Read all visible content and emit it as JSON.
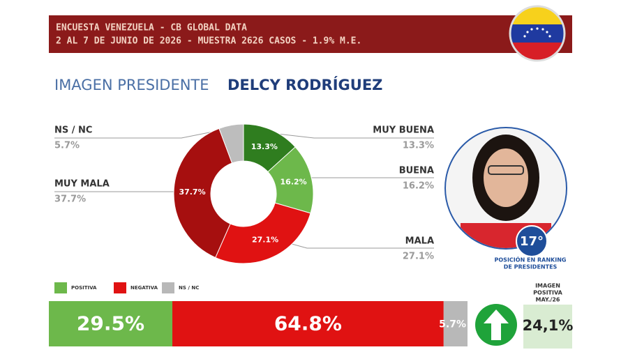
{
  "header": {
    "line1": "ENCUESTA VENEZUELA - CB GLOBAL DATA",
    "line2": "2 AL 7 DE JUNIO DE 2026 - MUESTRA 2626 CASOS - 1.9% M.E."
  },
  "title": {
    "prefix": "IMAGEN PRESIDENTE",
    "name": "DELCY RODRÍGUEZ"
  },
  "ranking": {
    "position": "17°",
    "caption": [
      "POSICIÓN EN RANKING",
      "DE PRESIDENTES"
    ]
  },
  "positive_image": {
    "caption": [
      "IMAGEN",
      "POSITIVA",
      "MAY./26"
    ],
    "value": "24,1%"
  },
  "chart_data": [
    {
      "type": "pie",
      "donut": true,
      "categories": [
        "MUY BUENA",
        "BUENA",
        "MALA",
        "MUY MALA",
        "NS / NC"
      ],
      "values": [
        13.3,
        16.2,
        27.1,
        37.7,
        5.7
      ],
      "value_labels": [
        "13.3%",
        "16.2%",
        "27.1%",
        "37.7%",
        "5.7%"
      ],
      "colors": [
        "#2f7d1f",
        "#6db84b",
        "#e01212",
        "#a60f0f",
        "#bdbdbd"
      ]
    },
    {
      "type": "bar",
      "stacked": true,
      "orientation": "horizontal",
      "xlim": [
        0,
        100
      ],
      "series": [
        {
          "name": "POSITIVA",
          "color": "#6db84b",
          "values": [
            29.5
          ],
          "value_labels": [
            "29.5%"
          ]
        },
        {
          "name": "NEGATIVA",
          "color": "#e01212",
          "values": [
            64.8
          ],
          "value_labels": [
            "64.8%"
          ]
        },
        {
          "name": "NS / NC",
          "color": "#b8b8b8",
          "values": [
            5.7
          ],
          "value_labels": [
            "5.7%"
          ]
        }
      ]
    }
  ]
}
